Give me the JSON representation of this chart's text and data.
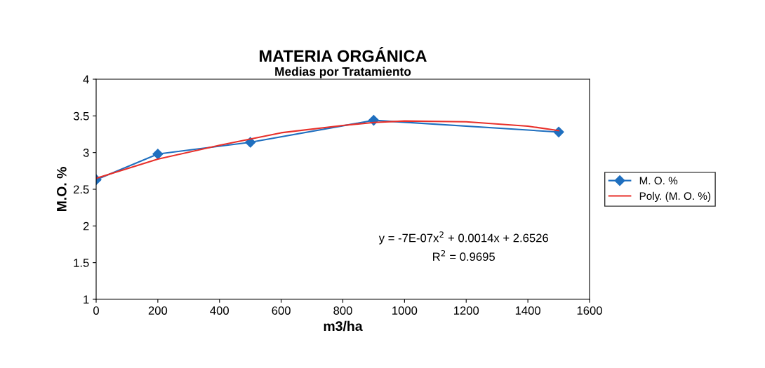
{
  "chart_data": {
    "type": "line",
    "title": "MATERIA ORGÁNICA",
    "subtitle": "Medias por Tratamiento",
    "xlabel": "m3/ha",
    "ylabel": "M.O. %",
    "series": [
      {
        "name": "M. O. %",
        "color": "#1f6fbf",
        "marker": "diamond",
        "x": [
          0,
          200,
          500,
          900,
          1500
        ],
        "values": [
          2.63,
          2.98,
          3.14,
          3.44,
          3.28
        ]
      },
      {
        "name": "Poly. (M. O. %)",
        "color": "#e8302a",
        "marker": "none",
        "x": [
          0,
          200,
          400,
          600,
          800,
          900,
          1000,
          1200,
          1400,
          1500
        ],
        "values": [
          2.65,
          2.91,
          3.1,
          3.27,
          3.37,
          3.41,
          3.43,
          3.42,
          3.36,
          3.3
        ]
      }
    ],
    "xlim": [
      0,
      1600
    ],
    "xticks": [
      0,
      200,
      400,
      600,
      800,
      1000,
      1200,
      1400,
      1600
    ],
    "ylim": [
      1,
      4
    ],
    "yticks": [
      1,
      1.5,
      2,
      2.5,
      3,
      3.5,
      4
    ],
    "annotations": [
      "y = -7E-07x$^{2}$ + 0.0014x + 2.6526",
      "R$^{2}$ = 0.9695"
    ],
    "grid": false,
    "legend": "right"
  }
}
